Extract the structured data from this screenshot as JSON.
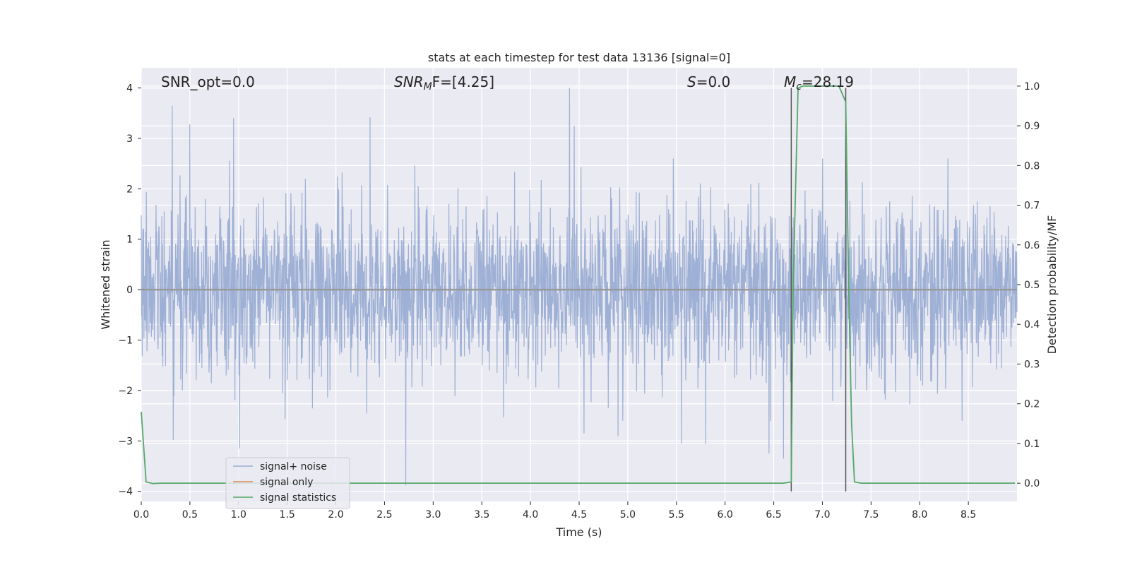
{
  "chart_data": {
    "type": "line",
    "title": "stats at each timestep for test data 13136 [signal=0]",
    "xlabel": "Time (s)",
    "ylabel": "Whitened strain",
    "y2label": "Detection probability/MF",
    "xlim": [
      0,
      9.0
    ],
    "ylim": [
      -4.2,
      4.4
    ],
    "y2lim": [
      -0.046,
      1.046
    ],
    "grid": true,
    "legend_position": "lower-left",
    "x_ticks": [
      0.0,
      0.5,
      1.0,
      1.5,
      2.0,
      2.5,
      3.0,
      3.5,
      4.0,
      4.5,
      5.0,
      5.5,
      6.0,
      6.5,
      7.0,
      7.5,
      8.0,
      8.5
    ],
    "x_tick_labels": [
      "0.0",
      "0.5",
      "1.0",
      "1.5",
      "2.0",
      "2.5",
      "3.0",
      "3.5",
      "4.0",
      "4.5",
      "5.0",
      "5.5",
      "6.0",
      "6.5",
      "7.0",
      "7.5",
      "8.0",
      "8.5"
    ],
    "y_ticks": [
      -4,
      -3,
      -2,
      -1,
      0,
      1,
      2,
      3,
      4
    ],
    "y_tick_labels": [
      "−4",
      "−3",
      "−2",
      "−1",
      "0",
      "1",
      "2",
      "3",
      "4"
    ],
    "y2_ticks": [
      0.0,
      0.1,
      0.2,
      0.3,
      0.4,
      0.5,
      0.6,
      0.7,
      0.8,
      0.9,
      1.0
    ],
    "y2_tick_labels": [
      "0.0",
      "0.1",
      "0.2",
      "0.3",
      "0.4",
      "0.5",
      "0.6",
      "0.7",
      "0.8",
      "0.9",
      "1.0"
    ],
    "annotations": {
      "snr_opt": "SNR_opt=0.0",
      "snr_mf_italic": "SNR",
      "snr_mf_sub": "M",
      "snr_mf_rest": "F=[4.25]",
      "s_italic": "S",
      "s_rest": "=0.0",
      "mc_italic": "M",
      "mc_sub": "c",
      "mc_rest": "=28.19"
    },
    "series": [
      {
        "name": "signal+ noise",
        "color": "#9aadd3",
        "axis": "left",
        "description_only": false,
        "envelope_seed": 13136,
        "x_range": [
          0,
          9.0
        ],
        "spikes": [
          [
            0.32,
            3.65
          ],
          [
            0.5,
            3.28
          ],
          [
            0.95,
            3.4
          ],
          [
            2.35,
            3.42
          ],
          [
            4.4,
            4.0
          ],
          [
            4.45,
            3.25
          ],
          [
            1.01,
            -3.15
          ],
          [
            2.72,
            -3.88
          ],
          [
            0.33,
            -2.98
          ],
          [
            6.45,
            -3.25
          ],
          [
            6.6,
            -3.35
          ],
          [
            5.55,
            -3.05
          ],
          [
            5.8,
            -3.06
          ],
          [
            4.55,
            -2.85
          ],
          [
            4.9,
            -2.9
          ]
        ]
      },
      {
        "name": "signal only",
        "color": "#dd8452",
        "axis": "left",
        "x": [
          0,
          9.0
        ],
        "y": [
          0,
          0
        ]
      },
      {
        "name": "signal statistics",
        "color": "#55a868",
        "axis": "right",
        "x": [
          0.0,
          0.05,
          0.12,
          0.2,
          6.6,
          6.68,
          6.7,
          6.75,
          6.8,
          7.0,
          7.17,
          7.24,
          7.27,
          7.3,
          7.33,
          7.4,
          8.98
        ],
        "y": [
          0.18,
          0.003,
          -0.001,
          0.0,
          0.0,
          0.003,
          0.5,
          0.995,
          1.0,
          1.0,
          1.0,
          0.96,
          0.5,
          0.15,
          0.003,
          0.0,
          0.0
        ]
      }
    ],
    "vlines": [
      {
        "x": 6.68,
        "ymin": -4.0,
        "ymax": 4.0,
        "color": "#555555"
      },
      {
        "x": 7.24,
        "ymin": -4.0,
        "ymax": 4.0,
        "color": "#555555"
      }
    ]
  }
}
